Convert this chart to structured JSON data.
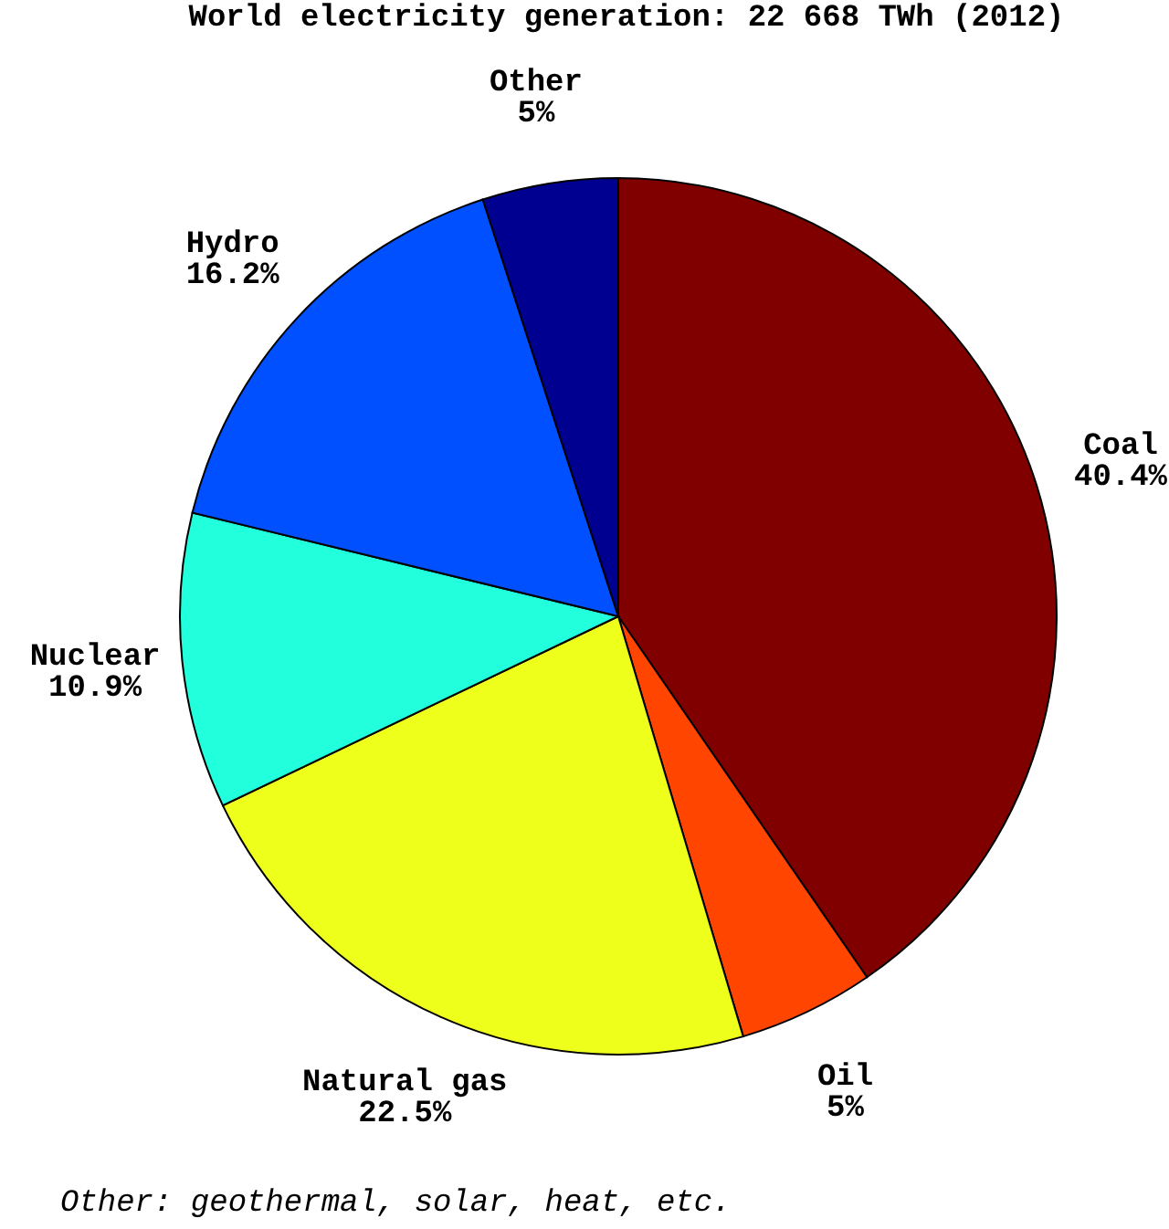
{
  "chart_data": {
    "type": "pie",
    "title": "World electricity generation: 22 668 TWh (2012)",
    "categories": [
      "Coal",
      "Oil",
      "Natural gas",
      "Nuclear",
      "Hydro",
      "Other"
    ],
    "values": [
      40.4,
      5,
      22.5,
      10.9,
      16.2,
      5
    ],
    "value_labels": [
      "40.4%",
      "5%",
      "22.5%",
      "10.9%",
      "16.2%",
      "5%"
    ],
    "colors": [
      "#800000",
      "#ff4500",
      "#eeff1b",
      "#22ffdd",
      "#0050ff",
      "#000090"
    ],
    "annotations": [
      "Other: geothermal, solar, heat, etc."
    ]
  }
}
